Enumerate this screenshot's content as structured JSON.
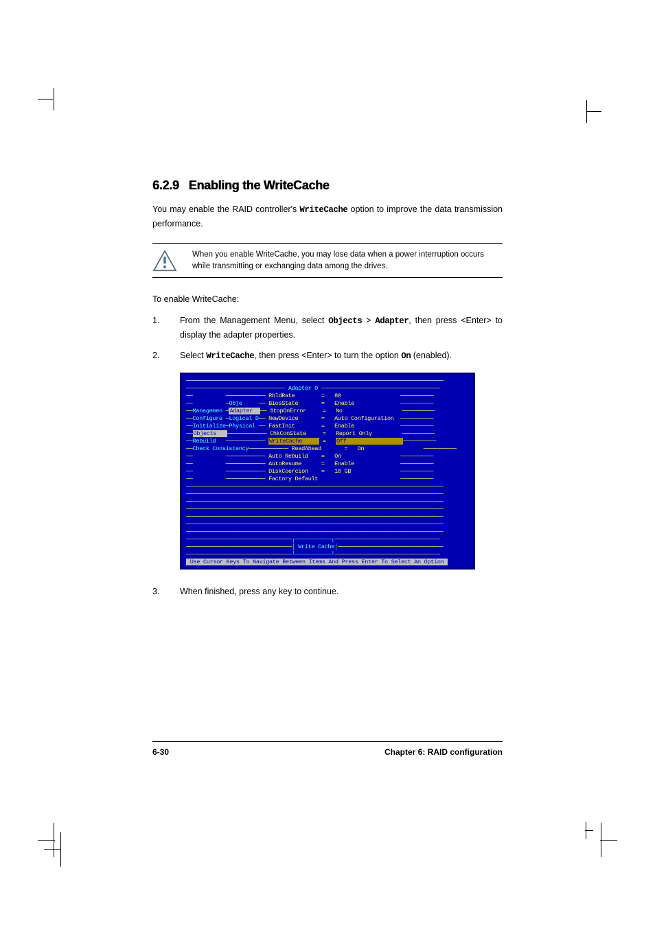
{
  "section_number": "6.2.9",
  "section_title": "Enabling the WriteCache",
  "intro_pre": "You may enable the RAID controller's ",
  "intro_code": "WriteCache",
  "intro_post": " option to improve the data transmission performance.",
  "note": "When you enable WriteCache, you may lose data when a power interruption occurs while transmitting or exchanging data among the drives.",
  "lead": "To enable WriteCache:",
  "step1_pre": "From the Management Menu, select ",
  "step1_b1": "Objects",
  "step1_mid": " > ",
  "step1_b2": "Adapter",
  "step1_post": ", then press <Enter> to display the adapter properties.",
  "step2_pre": "Select ",
  "step2_b1": "WriteCache",
  "step2_mid": ", then press <Enter> to turn the option ",
  "step2_b2": "On",
  "step2_post": " (enabled).",
  "step3": "When finished, press any key to continue.",
  "bios": {
    "title_label": "Adapter 0",
    "rows": [
      {
        "c1": "",
        "c2": "",
        "t": "RbldRate",
        "eq": "=",
        "v": "80"
      },
      {
        "c1": "",
        "c2": "Obje",
        "t": "BiosState",
        "eq": "=",
        "v": "Enable"
      },
      {
        "c1": "Managemen",
        "c2": "Adapter",
        "t": "StopOnError",
        "eq": "=",
        "v": "No"
      },
      {
        "c1": "Configure",
        "c2": "Logical D",
        "t": "NewDevice",
        "eq": "=",
        "v": "Auto Configuration"
      },
      {
        "c1": "Initialize",
        "c2": "Physical",
        "t": "FastInit",
        "eq": "=",
        "v": "Enable"
      },
      {
        "c1": "Objects",
        "c2": "",
        "t": "ChkConState",
        "eq": "=",
        "v": "Report Only",
        "h1": true
      },
      {
        "c1": "Rebuild",
        "c2": "",
        "t": "WriteCache",
        "eq": "=",
        "v": "Off",
        "h2": true
      },
      {
        "c1": "Check Consistency",
        "c2": "",
        "t": "ReadAhead",
        "eq": "=",
        "v": "On"
      },
      {
        "c1": "",
        "c2": "",
        "t": "Auto Rebuild",
        "eq": "=",
        "v": "On"
      },
      {
        "c1": "",
        "c2": "",
        "t": "AutoResume",
        "eq": "=",
        "v": "Enable"
      },
      {
        "c1": "",
        "c2": "",
        "t": "DiskCoercion",
        "eq": "=",
        "v": "10 GB"
      },
      {
        "c1": "",
        "c2": "",
        "t": "Factory Default",
        "eq": "",
        "v": ""
      }
    ],
    "bottom_label": "Write Cache",
    "hint": "Use Cursor Keys To Navigate Between Items And Press Enter To Select An Option"
  },
  "footer_page": "6-30",
  "footer_chapter": "Chapter 6: RAID configuration",
  "colors": {
    "bios_bg": "#0000b0",
    "bios_border": "#000080",
    "yellow": "#ffff55",
    "cyan": "#55ffff"
  }
}
